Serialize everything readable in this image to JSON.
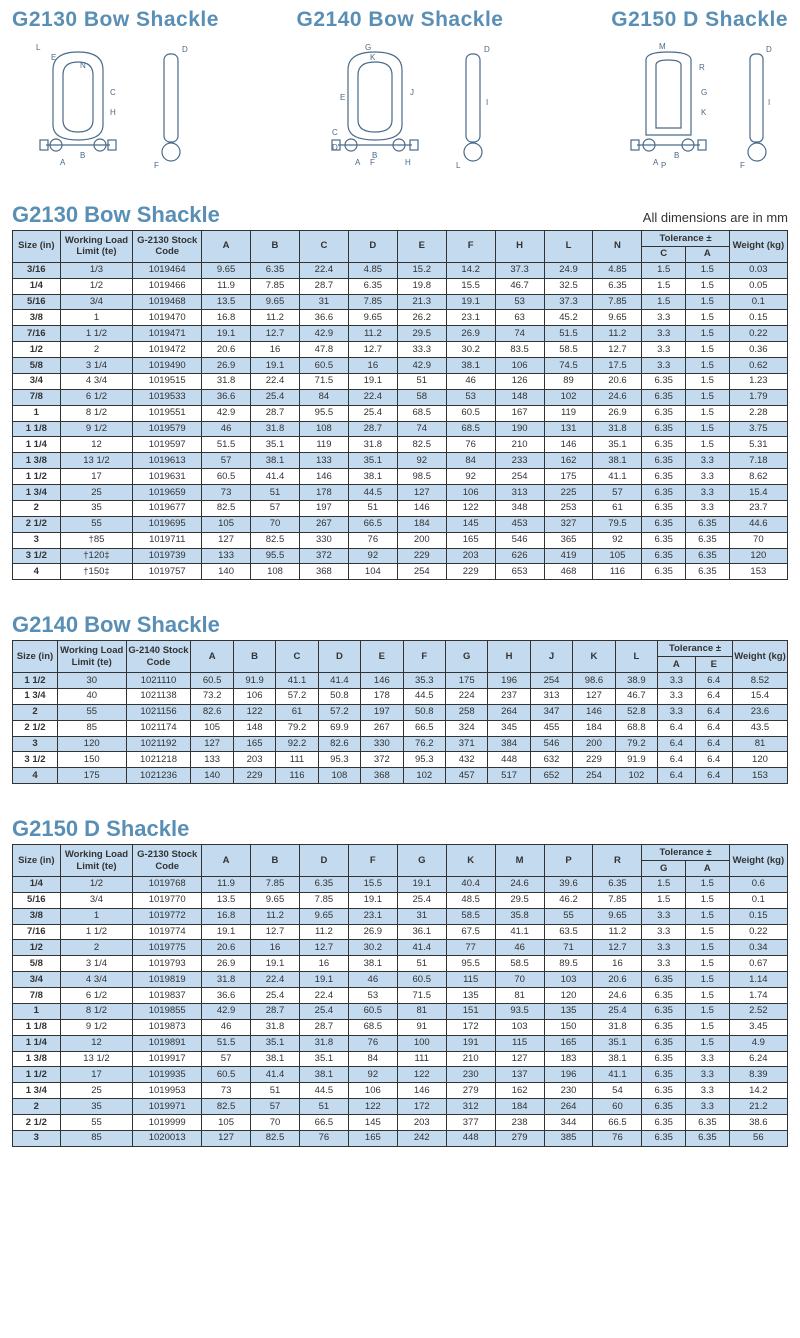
{
  "headers": {
    "d1": "G2130 Bow Shackle",
    "d2": "G2140 Bow Shackle",
    "d3": "G2150 D Shackle"
  },
  "section1": {
    "title": "G2130 Bow Shackle",
    "note": "All dimensions are in mm",
    "cols": [
      "Size (in)",
      "Working Load Limit (te)",
      "G-2130 Stock Code",
      "A",
      "B",
      "C",
      "D",
      "E",
      "F",
      "H",
      "L",
      "N",
      "Tolerance ±",
      "Weight (kg)"
    ],
    "tolSubs": [
      "C",
      "A"
    ],
    "rows": [
      [
        "3/16",
        "1/3",
        "1019464",
        "9.65",
        "6.35",
        "22.4",
        "4.85",
        "15.2",
        "14.2",
        "37.3",
        "24.9",
        "4.85",
        "1.5",
        "1.5",
        "0.03"
      ],
      [
        "1/4",
        "1/2",
        "1019466",
        "11.9",
        "7.85",
        "28.7",
        "6.35",
        "19.8",
        "15.5",
        "46.7",
        "32.5",
        "6.35",
        "1.5",
        "1.5",
        "0.05"
      ],
      [
        "5/16",
        "3/4",
        "1019468",
        "13.5",
        "9.65",
        "31",
        "7.85",
        "21.3",
        "19.1",
        "53",
        "37.3",
        "7.85",
        "1.5",
        "1.5",
        "0.1"
      ],
      [
        "3/8",
        "1",
        "1019470",
        "16.8",
        "11.2",
        "36.6",
        "9.65",
        "26.2",
        "23.1",
        "63",
        "45.2",
        "9.65",
        "3.3",
        "1.5",
        "0.15"
      ],
      [
        "7/16",
        "1 1/2",
        "1019471",
        "19.1",
        "12.7",
        "42.9",
        "11.2",
        "29.5",
        "26.9",
        "74",
        "51.5",
        "11.2",
        "3.3",
        "1.5",
        "0.22"
      ],
      [
        "1/2",
        "2",
        "1019472",
        "20.6",
        "16",
        "47.8",
        "12.7",
        "33.3",
        "30.2",
        "83.5",
        "58.5",
        "12.7",
        "3.3",
        "1.5",
        "0.36"
      ],
      [
        "5/8",
        "3 1/4",
        "1019490",
        "26.9",
        "19.1",
        "60.5",
        "16",
        "42.9",
        "38.1",
        "106",
        "74.5",
        "17.5",
        "3.3",
        "1.5",
        "0.62"
      ],
      [
        "3/4",
        "4 3/4",
        "1019515",
        "31.8",
        "22.4",
        "71.5",
        "19.1",
        "51",
        "46",
        "126",
        "89",
        "20.6",
        "6.35",
        "1.5",
        "1.23"
      ],
      [
        "7/8",
        "6 1/2",
        "1019533",
        "36.6",
        "25.4",
        "84",
        "22.4",
        "58",
        "53",
        "148",
        "102",
        "24.6",
        "6.35",
        "1.5",
        "1.79"
      ],
      [
        "1",
        "8 1/2",
        "1019551",
        "42.9",
        "28.7",
        "95.5",
        "25.4",
        "68.5",
        "60.5",
        "167",
        "119",
        "26.9",
        "6.35",
        "1.5",
        "2.28"
      ],
      [
        "1 1/8",
        "9 1/2",
        "1019579",
        "46",
        "31.8",
        "108",
        "28.7",
        "74",
        "68.5",
        "190",
        "131",
        "31.8",
        "6.35",
        "1.5",
        "3.75"
      ],
      [
        "1 1/4",
        "12",
        "1019597",
        "51.5",
        "35.1",
        "119",
        "31.8",
        "82.5",
        "76",
        "210",
        "146",
        "35.1",
        "6.35",
        "1.5",
        "5.31"
      ],
      [
        "1 3/8",
        "13 1/2",
        "1019613",
        "57",
        "38.1",
        "133",
        "35.1",
        "92",
        "84",
        "233",
        "162",
        "38.1",
        "6.35",
        "3.3",
        "7.18"
      ],
      [
        "1 1/2",
        "17",
        "1019631",
        "60.5",
        "41.4",
        "146",
        "38.1",
        "98.5",
        "92",
        "254",
        "175",
        "41.1",
        "6.35",
        "3.3",
        "8.62"
      ],
      [
        "1 3/4",
        "25",
        "1019659",
        "73",
        "51",
        "178",
        "44.5",
        "127",
        "106",
        "313",
        "225",
        "57",
        "6.35",
        "3.3",
        "15.4"
      ],
      [
        "2",
        "35",
        "1019677",
        "82.5",
        "57",
        "197",
        "51",
        "146",
        "122",
        "348",
        "253",
        "61",
        "6.35",
        "3.3",
        "23.7"
      ],
      [
        "2 1/2",
        "55",
        "1019695",
        "105",
        "70",
        "267",
        "66.5",
        "184",
        "145",
        "453",
        "327",
        "79.5",
        "6.35",
        "6.35",
        "44.6"
      ],
      [
        "3",
        "†85",
        "1019711",
        "127",
        "82.5",
        "330",
        "76",
        "200",
        "165",
        "546",
        "365",
        "92",
        "6.35",
        "6.35",
        "70"
      ],
      [
        "3 1/2",
        "†120‡",
        "1019739",
        "133",
        "95.5",
        "372",
        "92",
        "229",
        "203",
        "626",
        "419",
        "105",
        "6.35",
        "6.35",
        "120"
      ],
      [
        "4",
        "†150‡",
        "1019757",
        "140",
        "108",
        "368",
        "104",
        "254",
        "229",
        "653",
        "468",
        "116",
        "6.35",
        "6.35",
        "153"
      ]
    ]
  },
  "section2": {
    "title": "G2140 Bow Shackle",
    "cols": [
      "Size (in)",
      "Working Load Limit (te)",
      "G-2140 Stock Code",
      "A",
      "B",
      "C",
      "D",
      "E",
      "F",
      "G",
      "H",
      "J",
      "K",
      "L",
      "Tolerance ±",
      "Weight (kg)"
    ],
    "tolSubs": [
      "A",
      "E"
    ],
    "rows": [
      [
        "1 1/2",
        "30",
        "1021110",
        "60.5",
        "91.9",
        "41.1",
        "41.4",
        "146",
        "35.3",
        "175",
        "196",
        "254",
        "98.6",
        "38.9",
        "3.3",
        "6.4",
        "8.52"
      ],
      [
        "1 3/4",
        "40",
        "1021138",
        "73.2",
        "106",
        "57.2",
        "50.8",
        "178",
        "44.5",
        "224",
        "237",
        "313",
        "127",
        "46.7",
        "3.3",
        "6.4",
        "15.4"
      ],
      [
        "2",
        "55",
        "1021156",
        "82.6",
        "122",
        "61",
        "57.2",
        "197",
        "50.8",
        "258",
        "264",
        "347",
        "146",
        "52.8",
        "3.3",
        "6.4",
        "23.6"
      ],
      [
        "2 1/2",
        "85",
        "1021174",
        "105",
        "148",
        "79.2",
        "69.9",
        "267",
        "66.5",
        "324",
        "345",
        "455",
        "184",
        "68.8",
        "6.4",
        "6.4",
        "43.5"
      ],
      [
        "3",
        "120",
        "1021192",
        "127",
        "165",
        "92.2",
        "82.6",
        "330",
        "76.2",
        "371",
        "384",
        "546",
        "200",
        "79.2",
        "6.4",
        "6.4",
        "81"
      ],
      [
        "3 1/2",
        "150",
        "1021218",
        "133",
        "203",
        "111",
        "95.3",
        "372",
        "95.3",
        "432",
        "448",
        "632",
        "229",
        "91.9",
        "6.4",
        "6.4",
        "120"
      ],
      [
        "4",
        "175",
        "1021236",
        "140",
        "229",
        "116",
        "108",
        "368",
        "102",
        "457",
        "517",
        "652",
        "254",
        "102",
        "6.4",
        "6.4",
        "153"
      ]
    ]
  },
  "section3": {
    "title": "G2150 D Shackle",
    "cols": [
      "Size (in)",
      "Working Load Limit (te)",
      "G-2130 Stock Code",
      "A",
      "B",
      "D",
      "F",
      "G",
      "K",
      "M",
      "P",
      "R",
      "Tolerance ±",
      "Weight (kg)"
    ],
    "tolSubs": [
      "G",
      "A"
    ],
    "rows": [
      [
        "1/4",
        "1/2",
        "1019768",
        "11.9",
        "7.85",
        "6.35",
        "15.5",
        "19.1",
        "40.4",
        "24.6",
        "39.6",
        "6.35",
        "1.5",
        "1.5",
        "0.6"
      ],
      [
        "5/16",
        "3/4",
        "1019770",
        "13.5",
        "9.65",
        "7.85",
        "19.1",
        "25.4",
        "48.5",
        "29.5",
        "46.2",
        "7.85",
        "1.5",
        "1.5",
        "0.1"
      ],
      [
        "3/8",
        "1",
        "1019772",
        "16.8",
        "11.2",
        "9.65",
        "23.1",
        "31",
        "58.5",
        "35.8",
        "55",
        "9.65",
        "3.3",
        "1.5",
        "0.15"
      ],
      [
        "7/16",
        "1 1/2",
        "1019774",
        "19.1",
        "12.7",
        "11.2",
        "26.9",
        "36.1",
        "67.5",
        "41.1",
        "63.5",
        "11.2",
        "3.3",
        "1.5",
        "0.22"
      ],
      [
        "1/2",
        "2",
        "1019775",
        "20.6",
        "16",
        "12.7",
        "30.2",
        "41.4",
        "77",
        "46",
        "71",
        "12.7",
        "3.3",
        "1.5",
        "0.34"
      ],
      [
        "5/8",
        "3 1/4",
        "1019793",
        "26.9",
        "19.1",
        "16",
        "38.1",
        "51",
        "95.5",
        "58.5",
        "89.5",
        "16",
        "3.3",
        "1.5",
        "0.67"
      ],
      [
        "3/4",
        "4 3/4",
        "1019819",
        "31.8",
        "22.4",
        "19.1",
        "46",
        "60.5",
        "115",
        "70",
        "103",
        "20.6",
        "6.35",
        "1.5",
        "1.14"
      ],
      [
        "7/8",
        "6 1/2",
        "1019837",
        "36.6",
        "25.4",
        "22.4",
        "53",
        "71.5",
        "135",
        "81",
        "120",
        "24.6",
        "6.35",
        "1.5",
        "1.74"
      ],
      [
        "1",
        "8 1/2",
        "1019855",
        "42.9",
        "28.7",
        "25.4",
        "60.5",
        "81",
        "151",
        "93.5",
        "135",
        "25.4",
        "6.35",
        "1.5",
        "2.52"
      ],
      [
        "1 1/8",
        "9 1/2",
        "1019873",
        "46",
        "31.8",
        "28.7",
        "68.5",
        "91",
        "172",
        "103",
        "150",
        "31.8",
        "6.35",
        "1.5",
        "3.45"
      ],
      [
        "1 1/4",
        "12",
        "1019891",
        "51.5",
        "35.1",
        "31.8",
        "76",
        "100",
        "191",
        "115",
        "165",
        "35.1",
        "6.35",
        "1.5",
        "4.9"
      ],
      [
        "1 3/8",
        "13 1/2",
        "1019917",
        "57",
        "38.1",
        "35.1",
        "84",
        "111",
        "210",
        "127",
        "183",
        "38.1",
        "6.35",
        "3.3",
        "6.24"
      ],
      [
        "1 1/2",
        "17",
        "1019935",
        "60.5",
        "41.4",
        "38.1",
        "92",
        "122",
        "230",
        "137",
        "196",
        "41.1",
        "6.35",
        "3.3",
        "8.39"
      ],
      [
        "1 3/4",
        "25",
        "1019953",
        "73",
        "51",
        "44.5",
        "106",
        "146",
        "279",
        "162",
        "230",
        "54",
        "6.35",
        "3.3",
        "14.2"
      ],
      [
        "2",
        "35",
        "1019971",
        "82.5",
        "57",
        "51",
        "122",
        "172",
        "312",
        "184",
        "264",
        "60",
        "6.35",
        "3.3",
        "21.2"
      ],
      [
        "2 1/2",
        "55",
        "1019999",
        "105",
        "70",
        "66.5",
        "145",
        "203",
        "377",
        "238",
        "344",
        "66.5",
        "6.35",
        "6.35",
        "38.6"
      ],
      [
        "3",
        "85",
        "1020013",
        "127",
        "82.5",
        "76",
        "165",
        "242",
        "448",
        "279",
        "385",
        "76",
        "6.35",
        "6.35",
        "56"
      ]
    ]
  },
  "styling": {
    "header_color": "#c3daef",
    "title_color": "#5a8fb5",
    "border_color": "#333333",
    "font_size_table": 9.5,
    "font_size_title": 22,
    "col_widths": {
      "size": 36,
      "wll": 52,
      "code": 52,
      "dim": 38,
      "tol": 32,
      "weight": 44
    }
  }
}
